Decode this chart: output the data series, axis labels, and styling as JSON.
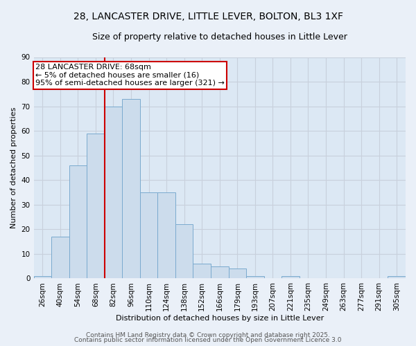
{
  "title_line1": "28, LANCASTER DRIVE, LITTLE LEVER, BOLTON, BL3 1XF",
  "title_line2": "Size of property relative to detached houses in Little Lever",
  "xlabel": "Distribution of detached houses by size in Little Lever",
  "ylabel": "Number of detached properties",
  "bar_color": "#ccdcec",
  "bar_edge_color": "#7aaacf",
  "categories": [
    "26sqm",
    "40sqm",
    "54sqm",
    "68sqm",
    "82sqm",
    "96sqm",
    "110sqm",
    "124sqm",
    "138sqm",
    "152sqm",
    "166sqm",
    "179sqm",
    "193sqm",
    "207sqm",
    "221sqm",
    "235sqm",
    "249sqm",
    "263sqm",
    "277sqm",
    "291sqm",
    "305sqm"
  ],
  "values": [
    1,
    17,
    46,
    59,
    70,
    73,
    35,
    35,
    22,
    6,
    5,
    4,
    1,
    0,
    1,
    0,
    0,
    0,
    0,
    0,
    1
  ],
  "ylim": [
    0,
    90
  ],
  "yticks": [
    0,
    10,
    20,
    30,
    40,
    50,
    60,
    70,
    80,
    90
  ],
  "property_line_x": 3.5,
  "annotation_title": "28 LANCASTER DRIVE: 68sqm",
  "annotation_line1": "← 5% of detached houses are smaller (16)",
  "annotation_line2": "95% of semi-detached houses are larger (321) →",
  "annotation_box_color": "#ffffff",
  "annotation_box_edge": "#cc0000",
  "vline_color": "#cc0000",
  "grid_color": "#c8d0dc",
  "bg_color": "#dce8f4",
  "fig_bg_color": "#eaf0f8",
  "footer_line1": "Contains HM Land Registry data © Crown copyright and database right 2025.",
  "footer_line2": "Contains public sector information licensed under the Open Government Licence 3.0",
  "title_fontsize": 10,
  "subtitle_fontsize": 9,
  "axis_label_fontsize": 8,
  "tick_fontsize": 7.5,
  "annotation_fontsize": 8,
  "footer_fontsize": 6.5
}
